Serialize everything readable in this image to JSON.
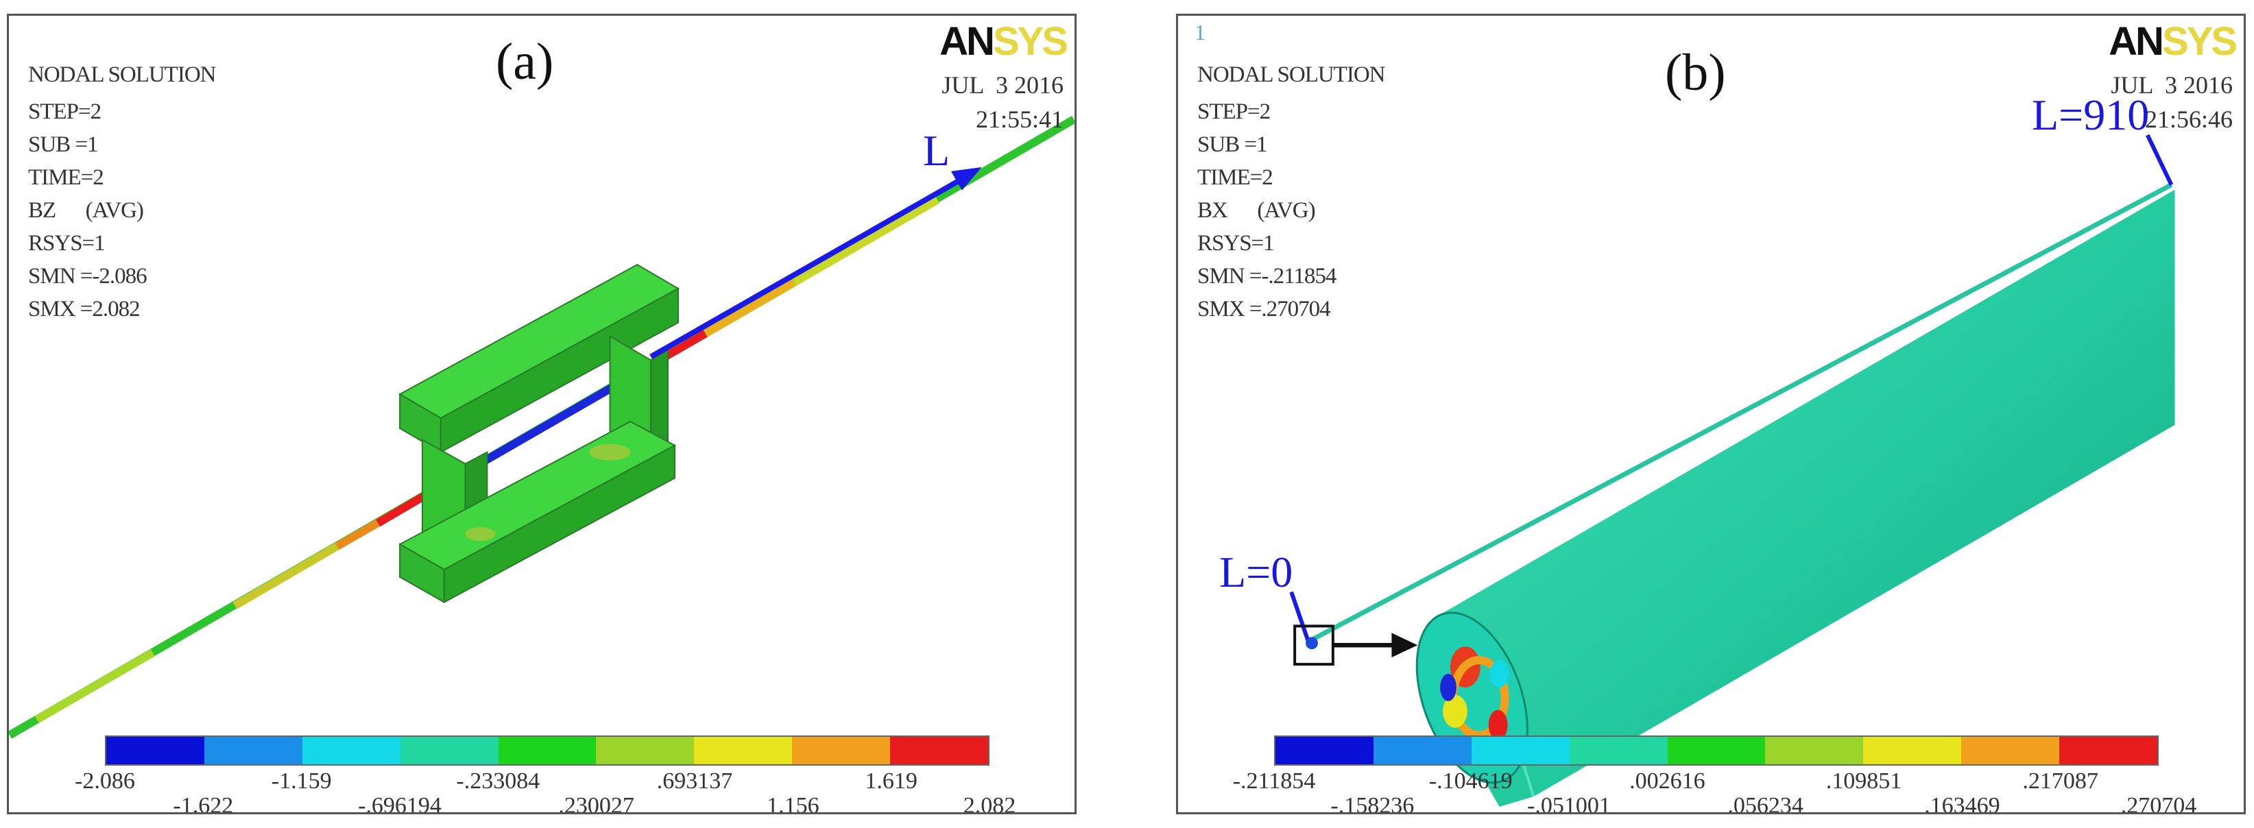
{
  "panel_a": {
    "label": "(a)",
    "logo": {
      "an": "AN",
      "sys": "SYS"
    },
    "info": {
      "title": "NODAL SOLUTION",
      "step": "STEP=2",
      "sub": "SUB =1",
      "time": "TIME=2",
      "field": "BZ      (AVG)",
      "rsys": "RSYS=1",
      "smn": "SMN =-2.086",
      "smx": "SMX =2.082"
    },
    "date": "JUL  3 2016",
    "time": "21:55:41",
    "arrow_label": "L",
    "legend": {
      "colors": [
        "#0a10d8",
        "#1a8ee8",
        "#13d8e8",
        "#22d6a0",
        "#1cd41c",
        "#9ad42a",
        "#e8e41c",
        "#f0a01c",
        "#e81c1c"
      ],
      "labels_top": [
        "-2.086",
        "-1.159",
        "-.233084",
        ".693137",
        "1.619"
      ],
      "labels_bottom": [
        "-1.622",
        "-.696194",
        ".230027",
        "1.156",
        "2.082"
      ]
    }
  },
  "panel_b": {
    "label": "(b)",
    "corner_mark": "1",
    "logo": {
      "an": "AN",
      "sys": "SYS"
    },
    "info": {
      "title": "NODAL SOLUTION",
      "step": "STEP=2",
      "sub": "SUB =1",
      "time": "TIME=2",
      "field": "BX      (AVG)",
      "rsys": "RSYS=1",
      "smn": "SMN =-.211854",
      "smx": "SMX =.270704"
    },
    "date": "JUL  3 2016",
    "time": "21:56:46",
    "label_l0": "L=0",
    "label_l910": "L=910",
    "legend": {
      "colors": [
        "#0a10d8",
        "#1a8ee8",
        "#13d8e8",
        "#22d6a0",
        "#1cd41c",
        "#9ad42a",
        "#e8e41c",
        "#f0a01c",
        "#e81c1c"
      ],
      "labels_top": [
        "-.211854",
        "-.104619",
        ".002616",
        ".109851",
        ".217087"
      ],
      "labels_bottom": [
        "-.158236",
        "-.051001",
        ".056234",
        ".163469",
        ".270704"
      ]
    }
  }
}
